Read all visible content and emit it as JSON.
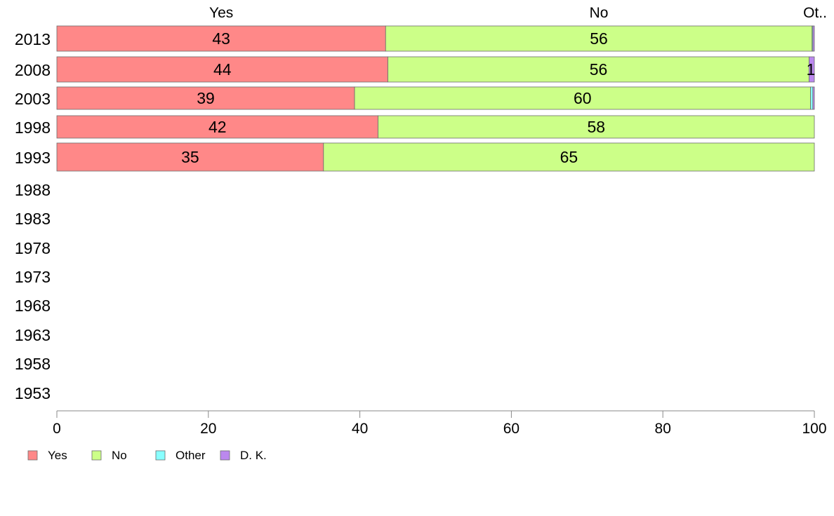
{
  "chart_data": {
    "type": "bar",
    "orientation": "horizontal",
    "stacked": true,
    "title": "",
    "xlabel": "",
    "ylabel": "",
    "xlim": [
      0,
      100
    ],
    "x_ticks": [
      "0",
      "20",
      "40",
      "60",
      "80",
      "100"
    ],
    "categories": [
      "2013",
      "2008",
      "2003",
      "1998",
      "1993",
      "1988",
      "1983",
      "1978",
      "1973",
      "1968",
      "1963",
      "1958",
      "1953"
    ],
    "column_headers": [
      "Yes",
      "No",
      "Ot.."
    ],
    "series": [
      {
        "name": "Yes",
        "color": "#ff8888",
        "values": [
          43.4,
          43.7,
          39.3,
          42.4,
          35.2,
          null,
          null,
          null,
          null,
          null,
          null,
          null,
          null
        ]
      },
      {
        "name": "No",
        "color": "#ccff88",
        "values": [
          56.3,
          55.6,
          60.2,
          57.6,
          64.8,
          null,
          null,
          null,
          null,
          null,
          null,
          null,
          null
        ]
      },
      {
        "name": "Other",
        "color": "#88ffff",
        "values": [
          0.1,
          0.0,
          0.3,
          0.0,
          0.0,
          null,
          null,
          null,
          null,
          null,
          null,
          null,
          null
        ]
      },
      {
        "name": "D. K.",
        "color": "#bb88ee",
        "values": [
          0.2,
          0.7,
          0.2,
          0.0,
          0.0,
          null,
          null,
          null,
          null,
          null,
          null,
          null,
          null
        ]
      }
    ],
    "data_labels": [
      [
        "43",
        "56",
        "",
        ""
      ],
      [
        "44",
        "56",
        "",
        "1"
      ],
      [
        "39",
        "60",
        "",
        ""
      ],
      [
        "42",
        "58",
        "",
        ""
      ],
      [
        "35",
        "65",
        "",
        ""
      ]
    ],
    "legend_position": "bottom-left",
    "grid": false
  }
}
